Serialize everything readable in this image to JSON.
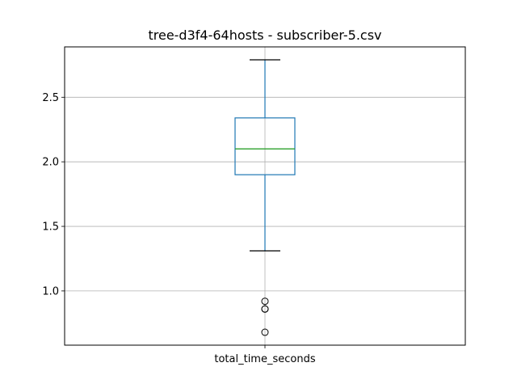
{
  "chart_data": {
    "type": "boxplot",
    "title": "tree-d3f4-64hosts - subscriber-5.csv",
    "categories": [
      "total_time_seconds"
    ],
    "ylim": [
      0.58,
      2.89
    ],
    "yticks": [
      1.0,
      1.5,
      2.0,
      2.5
    ],
    "ytick_labels": [
      "1.0",
      "1.5",
      "2.0",
      "2.5"
    ],
    "grid": true,
    "boxes": [
      {
        "category": "total_time_seconds",
        "whisker_low": 1.31,
        "q1": 1.9,
        "median": 2.1,
        "q3": 2.34,
        "whisker_high": 2.79,
        "outliers": [
          0.92,
          0.86,
          0.86,
          0.68
        ]
      }
    ],
    "colors": {
      "box": "#1f77b4",
      "median": "#2ca02c",
      "whisker_cap": "#000000",
      "grid": "#b0b0b0"
    }
  }
}
